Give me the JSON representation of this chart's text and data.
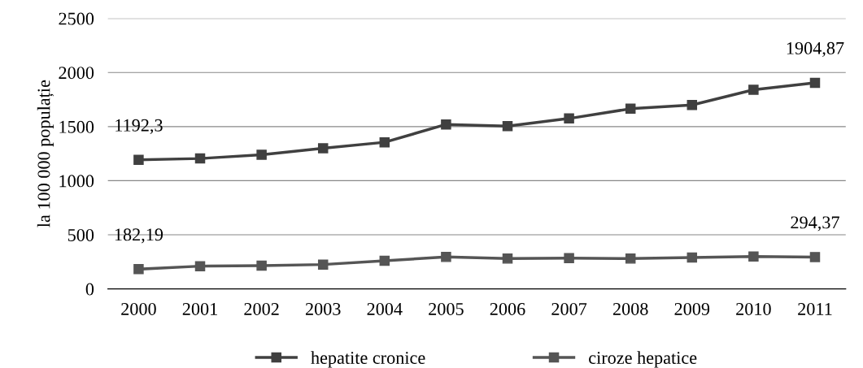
{
  "chart_data": {
    "type": "line",
    "ylabel": "la 100 000 populație",
    "categories": [
      "2000",
      "2001",
      "2002",
      "2003",
      "2004",
      "2005",
      "2006",
      "2007",
      "2008",
      "2009",
      "2010",
      "2011"
    ],
    "series": [
      {
        "name": "hepatite cronice",
        "color": "#404040",
        "values": [
          1192.3,
          1205,
          1240,
          1300,
          1355,
          1520,
          1505,
          1575,
          1665,
          1700,
          1840,
          1904.87
        ],
        "value_labels": [
          "1192,3",
          null,
          null,
          null,
          null,
          null,
          null,
          null,
          null,
          null,
          null,
          "1904,87"
        ]
      },
      {
        "name": "ciroze hepatice",
        "color": "#555555",
        "values": [
          182.19,
          210,
          215,
          225,
          260,
          295,
          280,
          285,
          280,
          290,
          300,
          294.37
        ],
        "value_labels": [
          "182,19",
          null,
          null,
          null,
          null,
          null,
          null,
          null,
          null,
          null,
          null,
          "294,37"
        ]
      }
    ],
    "ylim": [
      0,
      2500
    ],
    "yticks": [
      0,
      500,
      1000,
      1500,
      2000,
      2500
    ],
    "grid": "y",
    "legend": "bottom",
    "marker": "square",
    "line_style": "solid"
  }
}
